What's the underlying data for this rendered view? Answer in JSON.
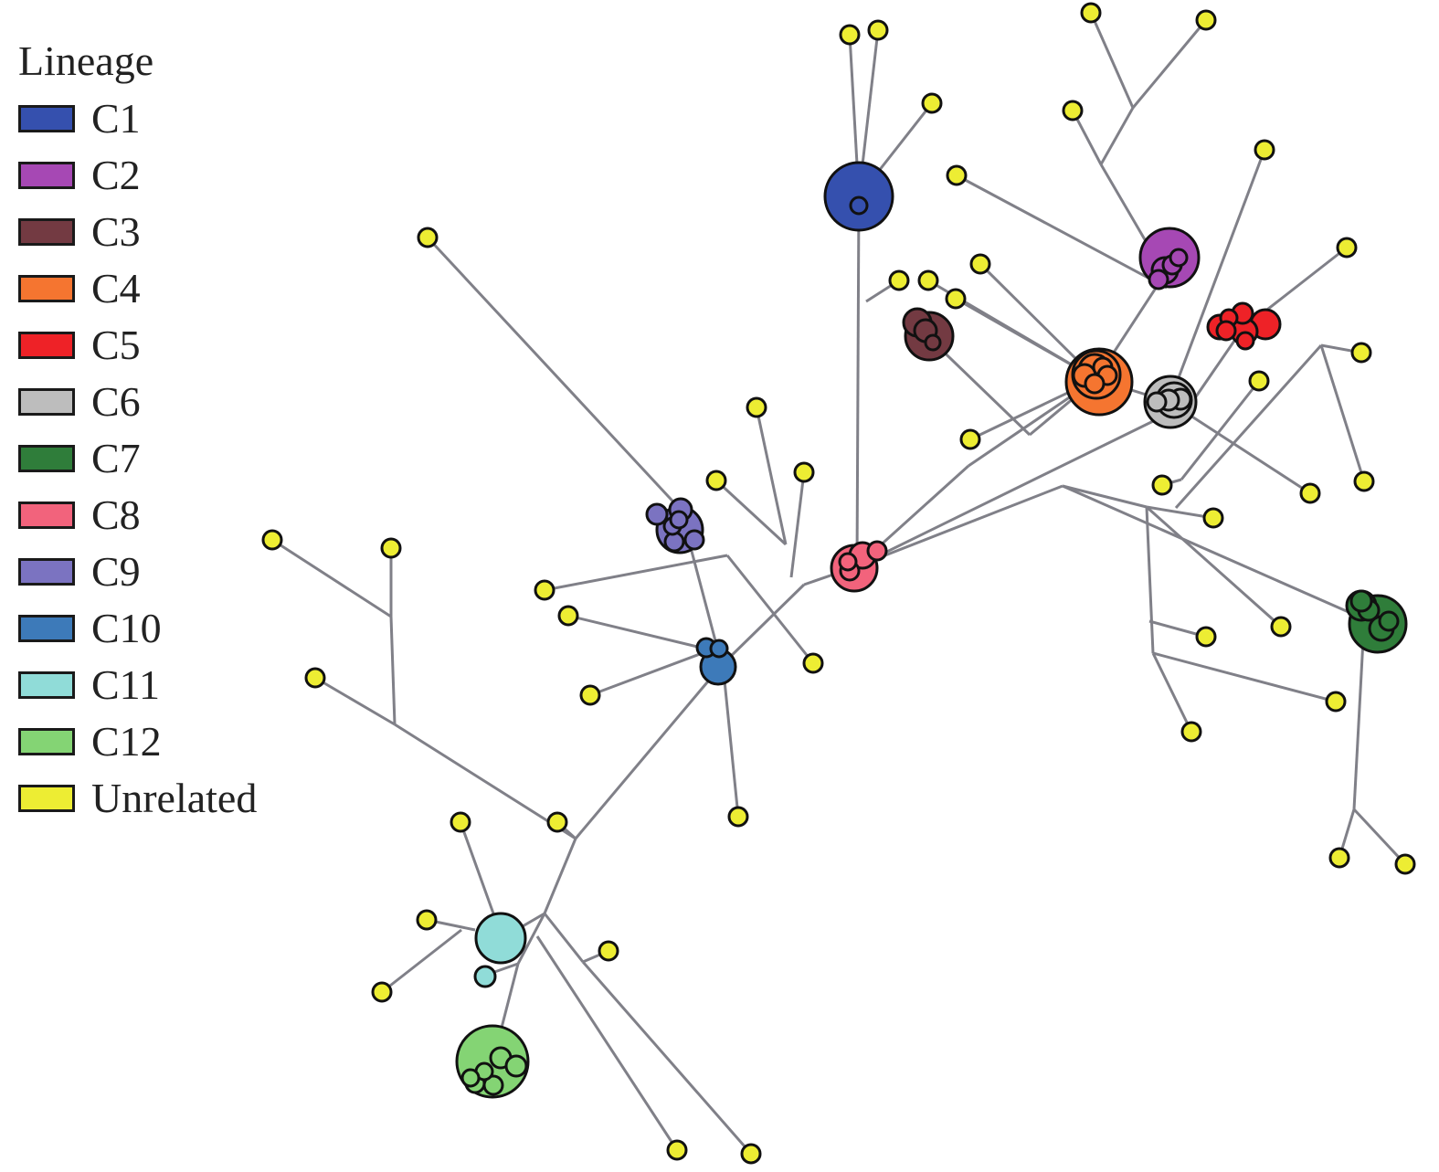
{
  "legend": {
    "title": "Lineage",
    "items": [
      {
        "label": "C1",
        "color": "#3550ae"
      },
      {
        "label": "C2",
        "color": "#a648b4"
      },
      {
        "label": "C3",
        "color": "#733a42"
      },
      {
        "label": "C4",
        "color": "#f57530"
      },
      {
        "label": "C5",
        "color": "#ee2227"
      },
      {
        "label": "C6",
        "color": "#bdbdbd"
      },
      {
        "label": "C7",
        "color": "#2f7d3a"
      },
      {
        "label": "C8",
        "color": "#f2637c"
      },
      {
        "label": "C9",
        "color": "#7b73c1"
      },
      {
        "label": "C10",
        "color": "#3d7ab9"
      },
      {
        "label": "C11",
        "color": "#90dcd8"
      },
      {
        "label": "C12",
        "color": "#84d474"
      },
      {
        "label": "Unrelated",
        "color": "#eded33"
      }
    ]
  },
  "edge_color": "#808088"
}
